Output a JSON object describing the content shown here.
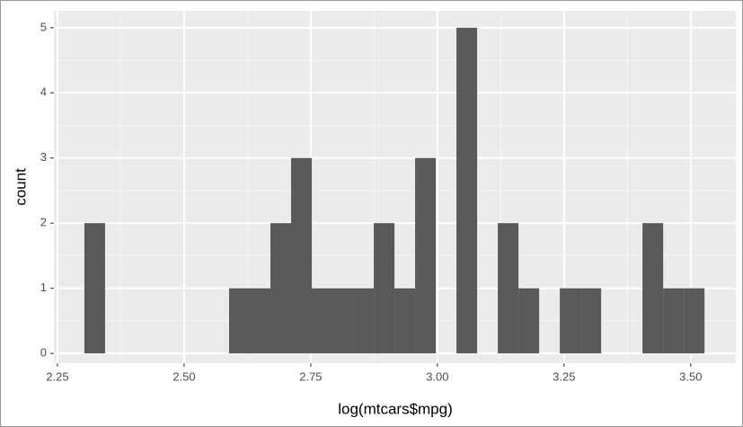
{
  "chart_data": {
    "type": "histogram",
    "xlabel": "log(mtcars$mpg)",
    "ylabel": "count",
    "bins": [
      2.3032,
      2.344,
      2.3848,
      2.4256,
      2.4664,
      2.5072,
      2.548,
      2.5888,
      2.6296,
      2.6704,
      2.7112,
      2.752,
      2.7928,
      2.8336,
      2.8744,
      2.9152,
      2.956,
      2.9968,
      3.0376,
      3.0784,
      3.1192,
      3.16,
      3.2008,
      3.2416,
      3.2824,
      3.3232,
      3.364,
      3.4048,
      3.4456,
      3.4864,
      3.5272
    ],
    "values": [
      2,
      0,
      0,
      0,
      0,
      0,
      0,
      1,
      1,
      2,
      3,
      1,
      1,
      1,
      2,
      1,
      3,
      0,
      5,
      0,
      2,
      1,
      0,
      1,
      1,
      0,
      0,
      2,
      1,
      1
    ],
    "color": "#595959",
    "xlim": [
      2.243,
      3.589
    ],
    "ylim": [
      -0.15,
      5.26
    ],
    "xticks": [
      2.25,
      {
        "value": 2.5,
        "label": "2.50"
      },
      2.75,
      {
        "value": 3,
        "label": "3.00"
      },
      3.25,
      {
        "value": 3.5,
        "label": "3.50"
      }
    ],
    "yticks": [
      0,
      1,
      2,
      3,
      4,
      5
    ],
    "grid": true
  }
}
